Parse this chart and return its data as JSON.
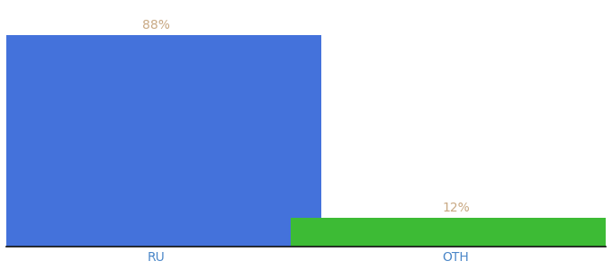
{
  "categories": [
    "RU",
    "OTH"
  ],
  "values": [
    88,
    12
  ],
  "bar_colors": [
    "#4472db",
    "#3dbb35"
  ],
  "label_texts": [
    "88%",
    "12%"
  ],
  "background_color": "#ffffff",
  "label_color": "#c8a882",
  "tick_label_color": "#4a86c8",
  "bar_width": 0.55,
  "ylim": [
    0,
    100
  ],
  "label_fontsize": 10,
  "tick_fontsize": 10
}
